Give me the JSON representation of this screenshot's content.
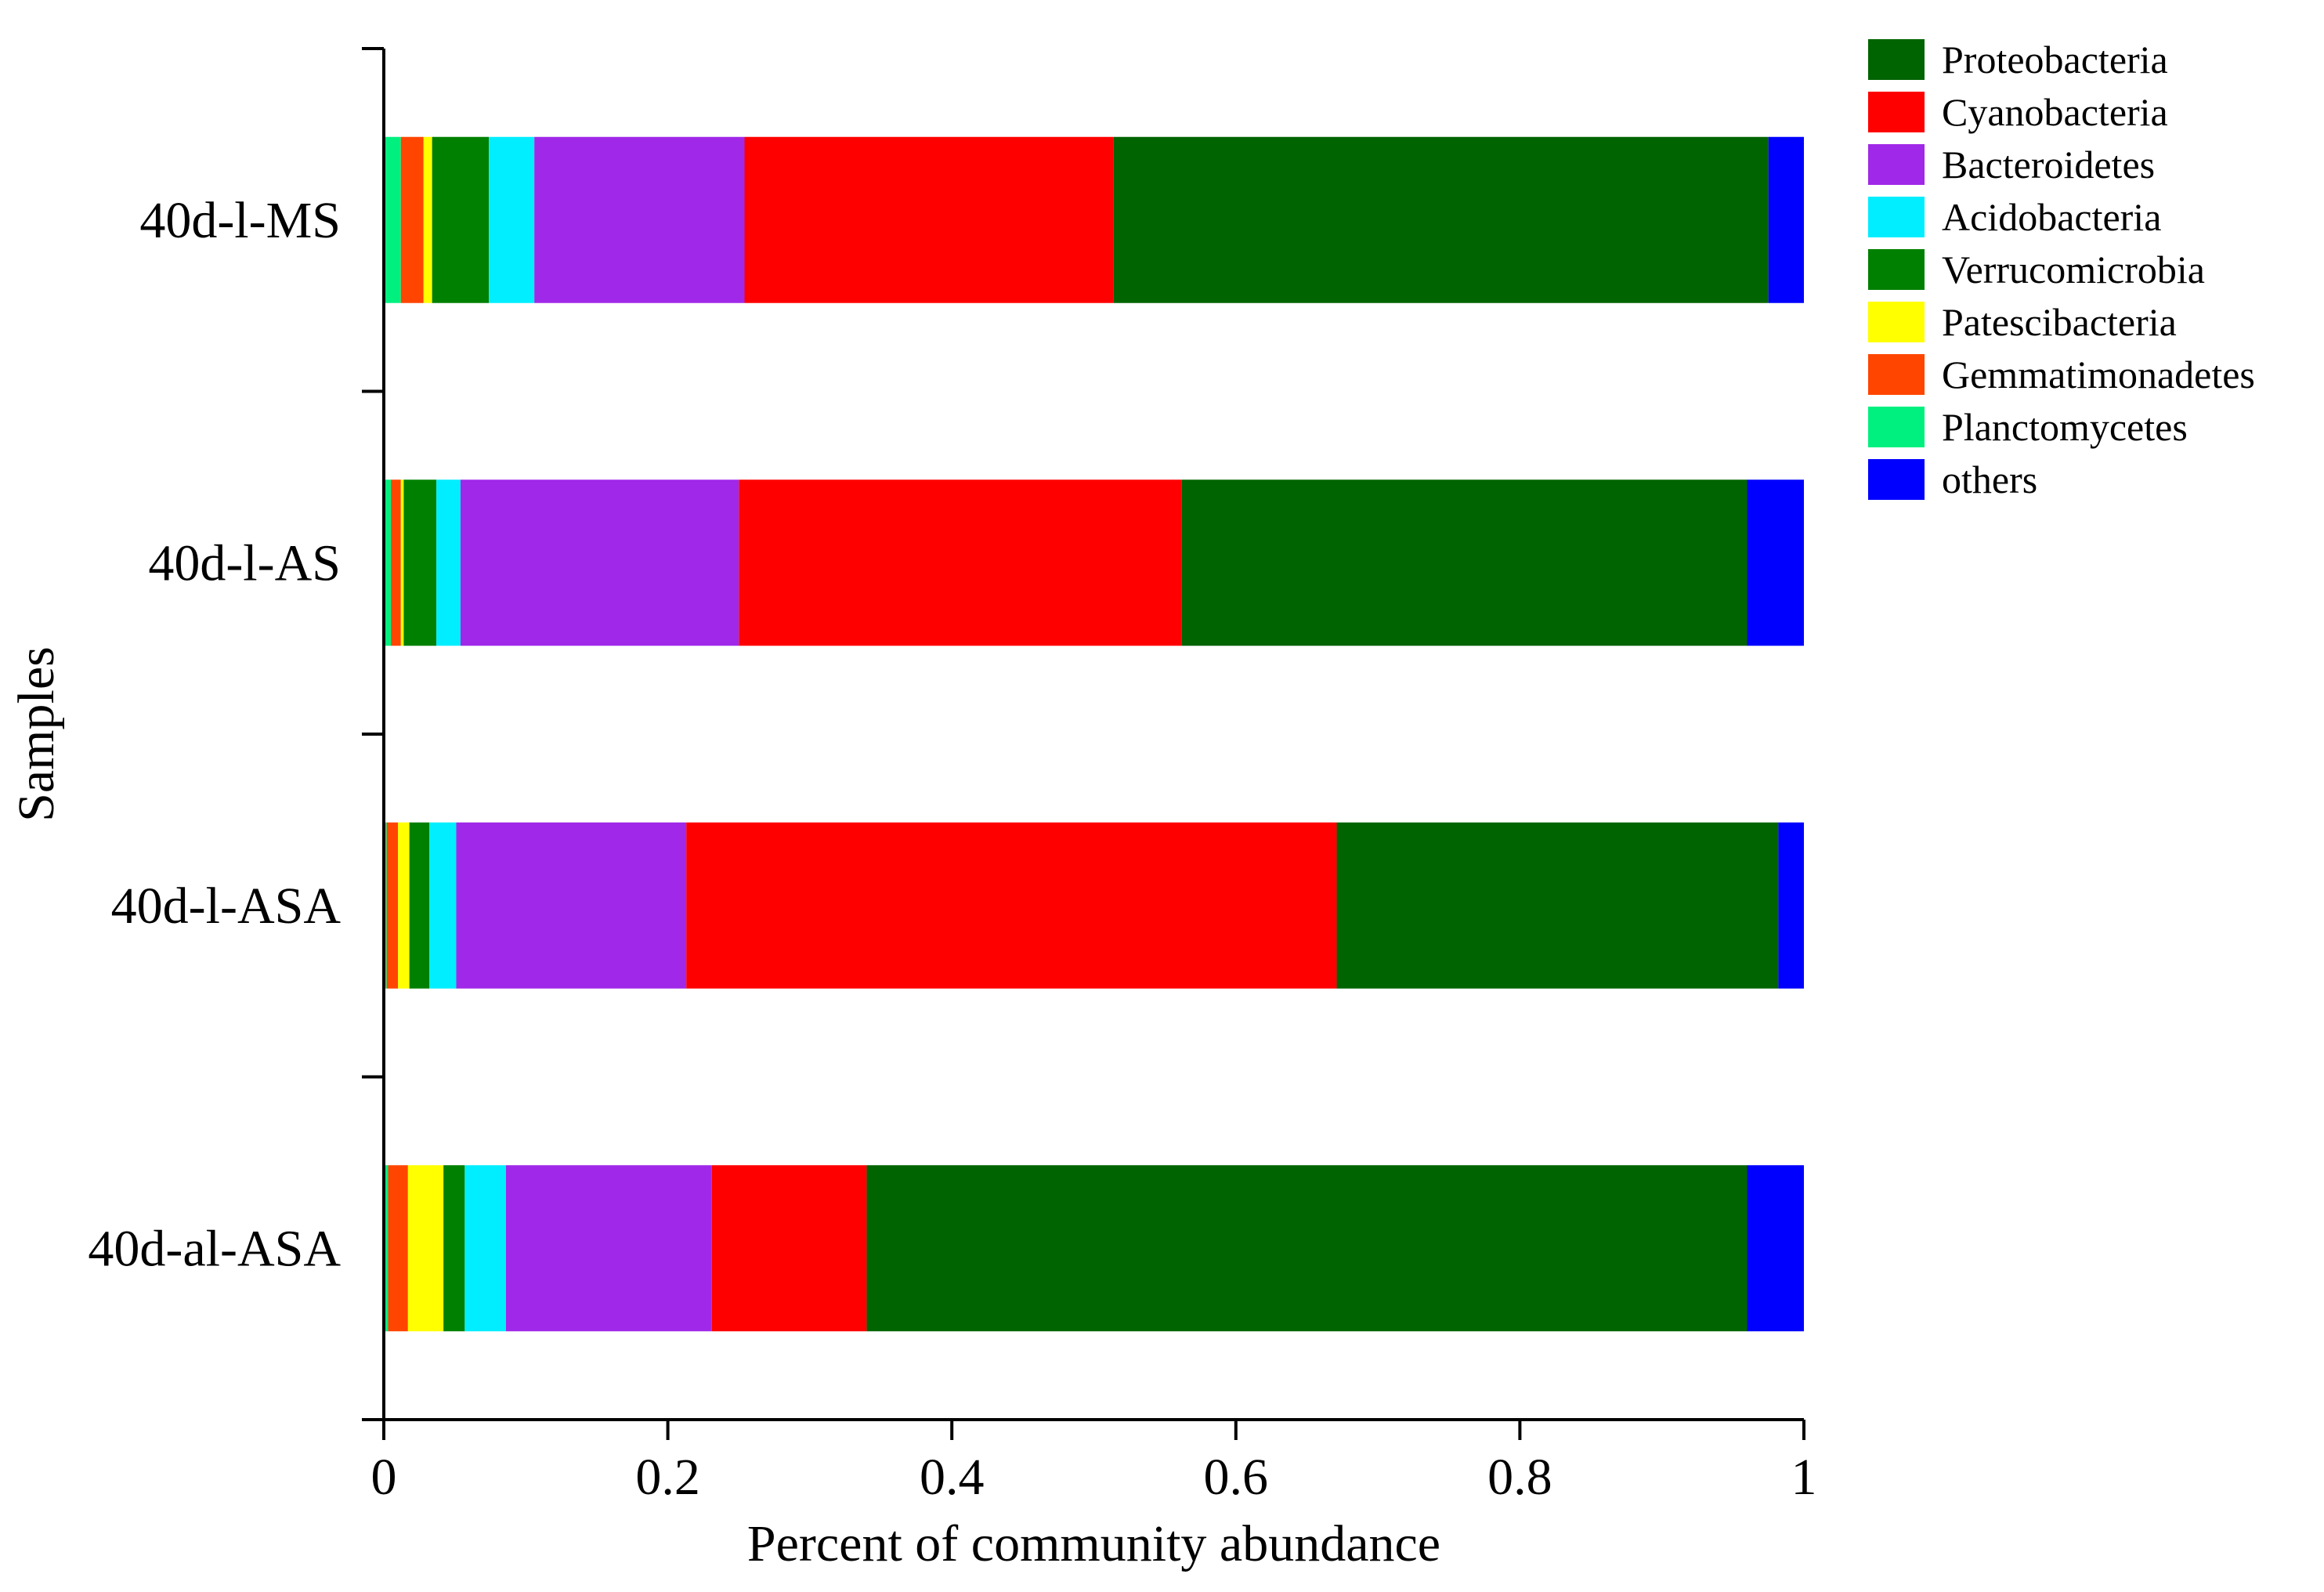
{
  "chart_data": {
    "type": "bar",
    "orientation": "horizontal",
    "stacked": true,
    "title": "",
    "xlabel": "Percent of community abundance",
    "ylabel": "Samples",
    "xlim": [
      0,
      1
    ],
    "x_ticks": [
      0,
      0.2,
      0.4,
      0.6,
      0.8,
      1
    ],
    "x_tick_labels": [
      "0",
      "0.2",
      "0.4",
      "0.6",
      "0.8",
      "1"
    ],
    "categories": [
      "40d-l-MS",
      "40d-l-AS",
      "40d-l-ASA",
      "40d-al-ASA"
    ],
    "grid": false,
    "legend_position": "top-right",
    "series": [
      {
        "name": "Planctomycetes",
        "color": "#00F080",
        "values": [
          0.012,
          0.005,
          0.002,
          0.003
        ]
      },
      {
        "name": "Gemmatimonadetes",
        "color": "#FF4500",
        "values": [
          0.016,
          0.007,
          0.008,
          0.014
        ]
      },
      {
        "name": "Patescibacteria",
        "color": "#FFFF00",
        "values": [
          0.006,
          0.002,
          0.008,
          0.025
        ]
      },
      {
        "name": "Verrucomicrobia",
        "color": "#008000",
        "values": [
          0.04,
          0.023,
          0.014,
          0.015
        ]
      },
      {
        "name": "Acidobacteria",
        "color": "#00EEFF",
        "values": [
          0.032,
          0.017,
          0.019,
          0.029
        ]
      },
      {
        "name": "Bacteroidetes",
        "color": "#A028E8",
        "values": [
          0.148,
          0.196,
          0.162,
          0.145
        ]
      },
      {
        "name": "Cyanobacteria",
        "color": "#FF0000",
        "values": [
          0.26,
          0.312,
          0.458,
          0.109
        ]
      },
      {
        "name": "Proteobacteria",
        "color": "#006400",
        "values": [
          0.461,
          0.398,
          0.311,
          0.62
        ]
      },
      {
        "name": "others",
        "color": "#0000FF",
        "values": [
          0.025,
          0.04,
          0.018,
          0.04
        ]
      }
    ],
    "legend_entries": [
      {
        "label": "Proteobacteria",
        "color": "#006400"
      },
      {
        "label": "Cyanobacteria",
        "color": "#FF0000"
      },
      {
        "label": "Bacteroidetes",
        "color": "#A028E8"
      },
      {
        "label": "Acidobacteria",
        "color": "#00EEFF"
      },
      {
        "label": "Verrucomicrobia",
        "color": "#008000"
      },
      {
        "label": "Patescibacteria",
        "color": "#FFFF00"
      },
      {
        "label": "Gemmatimonadetes",
        "color": "#FF4500"
      },
      {
        "label": "Planctomycetes",
        "color": "#00F080"
      },
      {
        "label": "others",
        "color": "#0000FF"
      }
    ]
  }
}
